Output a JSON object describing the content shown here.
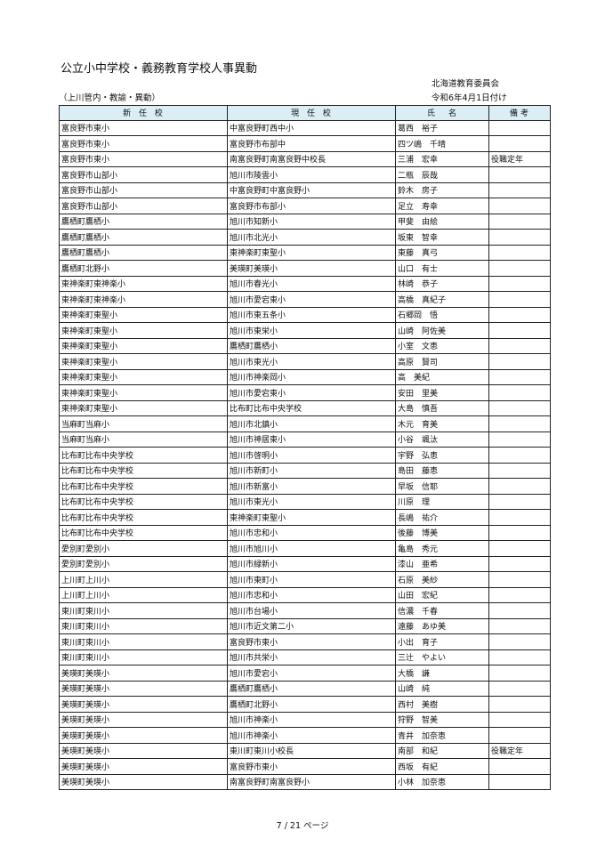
{
  "title": "公立小中学校・義務教育学校人事異動",
  "issuer": "北海道教育委員会",
  "scope": "（上川管内・教諭・異動）",
  "date": "令和6年4月1日付け",
  "headers": [
    "新 任 校",
    "現 任 校",
    "氏　名",
    "備考"
  ],
  "header_color": "#dbeef6",
  "rows": [
    [
      "富良野市東小",
      "中富良野町西中小",
      "葛西　裕子",
      ""
    ],
    [
      "富良野市東小",
      "富良野市布部中",
      "四ツ嶋　千晴",
      ""
    ],
    [
      "富良野市東小",
      "南富良野町南富良野中校長",
      "三浦　宏幸",
      "役職定年"
    ],
    [
      "富良野市山部小",
      "旭川市陵雲小",
      "二瓶　辰哉",
      ""
    ],
    [
      "富良野市山部小",
      "中富良野町中富良野小",
      "鈴木　房子",
      ""
    ],
    [
      "富良野市山部小",
      "富良野市布部小",
      "足立　寿幸",
      ""
    ],
    [
      "鷹栖町鷹栖小",
      "旭川市知新小",
      "甲斐　由絵",
      ""
    ],
    [
      "鷹栖町鷹栖小",
      "旭川市北光小",
      "坂東　智幸",
      ""
    ],
    [
      "鷹栖町鷹栖小",
      "東神楽町東聖小",
      "東藤　真弓",
      ""
    ],
    [
      "鷹栖町北野小",
      "美瑛町美瑛小",
      "山口　有士",
      ""
    ],
    [
      "東神楽町東神楽小",
      "旭川市春光小",
      "林崎　恭子",
      ""
    ],
    [
      "東神楽町東神楽小",
      "旭川市愛宕東小",
      "高橋　真紀子",
      ""
    ],
    [
      "東神楽町東聖小",
      "旭川市東五条小",
      "石郷岡　悟",
      ""
    ],
    [
      "東神楽町東聖小",
      "旭川市東栄小",
      "山崎　阿佐美",
      ""
    ],
    [
      "東神楽町東聖小",
      "鷹栖町鷹栖小",
      "小室　文恵",
      ""
    ],
    [
      "東神楽町東聖小",
      "旭川市東光小",
      "高原　賢司",
      ""
    ],
    [
      "東神楽町東聖小",
      "旭川市神楽岡小",
      "高　美紀",
      ""
    ],
    [
      "東神楽町東聖小",
      "旭川市愛宕東小",
      "安田　里美",
      ""
    ],
    [
      "東神楽町東聖小",
      "比布町比布中央学校",
      "大島　慎吾",
      ""
    ],
    [
      "当麻町当麻小",
      "旭川市北鎮小",
      "木元　育美",
      ""
    ],
    [
      "当麻町当麻小",
      "旭川市神居東小",
      "小谷　颯汰",
      ""
    ],
    [
      "比布町比布中央学校",
      "旭川市啓明小",
      "宇野　弘恵",
      ""
    ],
    [
      "比布町比布中央学校",
      "旭川市新町小",
      "島田　藤恵",
      ""
    ],
    [
      "比布町比布中央学校",
      "旭川市新富小",
      "早坂　信耶",
      ""
    ],
    [
      "比布町比布中央学校",
      "旭川市東光小",
      "川原　理",
      ""
    ],
    [
      "比布町比布中央学校",
      "東神楽町東聖小",
      "長嶋　祐介",
      ""
    ],
    [
      "比布町比布中央学校",
      "旭川市忠和小",
      "後藤　博美",
      ""
    ],
    [
      "愛別町愛別小",
      "旭川市旭川小",
      "亀島　秀元",
      ""
    ],
    [
      "愛別町愛別小",
      "旭川市緑新小",
      "漆山　亜希",
      ""
    ],
    [
      "上川町上川小",
      "旭川市東町小",
      "石原　美紗",
      ""
    ],
    [
      "上川町上川小",
      "旭川市忠和小",
      "山田　宏紀",
      ""
    ],
    [
      "東川町東川小",
      "旭川市台場小",
      "信濃　千春",
      ""
    ],
    [
      "東川町東川小",
      "旭川市近文第二小",
      "遠藤　あゆ美",
      ""
    ],
    [
      "東川町東川小",
      "富良野市東小",
      "小出　育子",
      ""
    ],
    [
      "東川町東川小",
      "旭川市共栄小",
      "三辻　やよい",
      ""
    ],
    [
      "美瑛町美瑛小",
      "旭川市愛宕小",
      "大橋　謙",
      ""
    ],
    [
      "美瑛町美瑛小",
      "鷹栖町鷹栖小",
      "山崎　純",
      ""
    ],
    [
      "美瑛町美瑛小",
      "鷹栖町北野小",
      "西村　美樹",
      ""
    ],
    [
      "美瑛町美瑛小",
      "旭川市神楽小",
      "狩野　智美",
      ""
    ],
    [
      "美瑛町美瑛小",
      "旭川市神楽小",
      "青井　加奈恵",
      ""
    ],
    [
      "美瑛町美瑛小",
      "東川町東川小校長",
      "南部　和紀",
      "役職定年"
    ],
    [
      "美瑛町美瑛小",
      "富良野市東小",
      "西坂　有紀",
      ""
    ],
    [
      "美瑛町美瑛小",
      "南富良野町南富良野小",
      "小林　加奈恵",
      ""
    ]
  ],
  "footer": "7 / 21 ページ"
}
